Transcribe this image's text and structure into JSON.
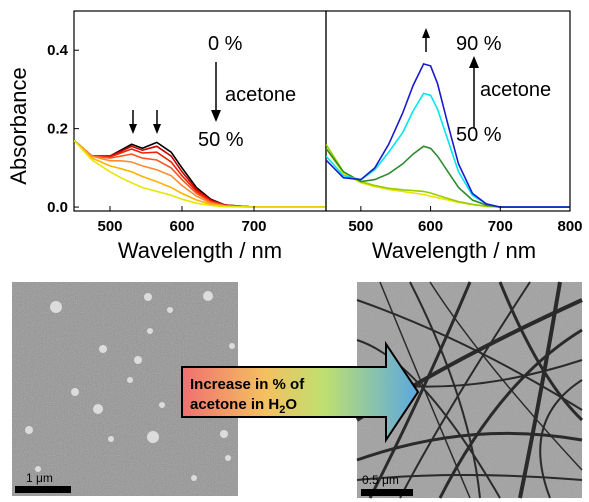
{
  "chart_data": [
    {
      "type": "line",
      "panel": "left",
      "xlabel": "Wavelength / nm",
      "ylabel": "Absorbance",
      "xlim": [
        450,
        800
      ],
      "ylim": [
        -0.01,
        0.5
      ],
      "xticks": [
        500,
        600,
        700
      ],
      "yticks": [
        0.0,
        0.2,
        0.4
      ],
      "grid": false,
      "annotations": {
        "top": "0 %",
        "label": "acetone",
        "bottom": "50 %"
      },
      "x": [
        450,
        475,
        500,
        515,
        530,
        545,
        565,
        585,
        600,
        620,
        640,
        660,
        700,
        750,
        800
      ],
      "series": [
        {
          "color": "#000000",
          "values": [
            0.17,
            0.13,
            0.13,
            0.145,
            0.16,
            0.15,
            0.165,
            0.14,
            0.1,
            0.05,
            0.02,
            0.005,
            0.0,
            0.0,
            0.0
          ]
        },
        {
          "color": "#cc0000",
          "values": [
            0.17,
            0.13,
            0.13,
            0.142,
            0.155,
            0.145,
            0.155,
            0.13,
            0.09,
            0.045,
            0.018,
            0.005,
            0.0,
            0.0,
            0.0
          ]
        },
        {
          "color": "#ee2200",
          "values": [
            0.17,
            0.13,
            0.128,
            0.138,
            0.148,
            0.138,
            0.14,
            0.115,
            0.08,
            0.04,
            0.015,
            0.004,
            0.0,
            0.0,
            0.0
          ]
        },
        {
          "color": "#ff5522",
          "values": [
            0.17,
            0.13,
            0.125,
            0.13,
            0.135,
            0.125,
            0.12,
            0.1,
            0.07,
            0.035,
            0.013,
            0.003,
            0.0,
            0.0,
            0.0
          ]
        },
        {
          "color": "#ff8c33",
          "values": [
            0.17,
            0.13,
            0.118,
            0.118,
            0.115,
            0.105,
            0.095,
            0.08,
            0.055,
            0.028,
            0.01,
            0.003,
            0.0,
            0.0,
            0.0
          ]
        },
        {
          "color": "#ffb300",
          "values": [
            0.17,
            0.125,
            0.105,
            0.098,
            0.09,
            0.078,
            0.065,
            0.05,
            0.035,
            0.018,
            0.007,
            0.002,
            0.0,
            0.0,
            0.0
          ]
        },
        {
          "color": "#e6e600",
          "values": [
            0.17,
            0.12,
            0.09,
            0.075,
            0.062,
            0.05,
            0.04,
            0.03,
            0.02,
            0.01,
            0.004,
            0.001,
            0.0,
            0.0,
            0.0
          ]
        }
      ]
    },
    {
      "type": "line",
      "panel": "right",
      "xlabel": "Wavelength / nm",
      "ylabel": "",
      "xlim": [
        450,
        800
      ],
      "ylim": [
        -0.01,
        0.5
      ],
      "xticks": [
        500,
        600,
        700,
        800
      ],
      "xtick_labels": [
        "500",
        "600",
        "700",
        "800"
      ],
      "grid": false,
      "annotations": {
        "top": "90 %",
        "label": "acetone",
        "bottom": "50 %"
      },
      "x": [
        450,
        475,
        500,
        520,
        540,
        560,
        575,
        590,
        600,
        610,
        625,
        640,
        660,
        680,
        700,
        750,
        800
      ],
      "series": [
        {
          "color": "#e6e600",
          "values": [
            0.15,
            0.085,
            0.062,
            0.052,
            0.045,
            0.04,
            0.036,
            0.032,
            0.028,
            0.024,
            0.018,
            0.012,
            0.006,
            0.002,
            0.0,
            0.0,
            0.0
          ]
        },
        {
          "color": "#99cc00",
          "values": [
            0.16,
            0.09,
            0.065,
            0.055,
            0.048,
            0.044,
            0.042,
            0.04,
            0.036,
            0.03,
            0.022,
            0.014,
            0.007,
            0.002,
            0.0,
            0.0,
            0.0
          ]
        },
        {
          "color": "#2e8b2e",
          "values": [
            0.15,
            0.09,
            0.065,
            0.07,
            0.085,
            0.11,
            0.135,
            0.155,
            0.15,
            0.13,
            0.09,
            0.05,
            0.018,
            0.005,
            0.0,
            0.0,
            0.0
          ]
        },
        {
          "color": "#00e5ee",
          "values": [
            0.13,
            0.08,
            0.07,
            0.095,
            0.14,
            0.19,
            0.245,
            0.29,
            0.285,
            0.25,
            0.17,
            0.09,
            0.03,
            0.008,
            0.0,
            0.0,
            0.0
          ]
        },
        {
          "color": "#1a1acc",
          "values": [
            0.12,
            0.075,
            0.07,
            0.1,
            0.16,
            0.24,
            0.31,
            0.365,
            0.36,
            0.315,
            0.21,
            0.11,
            0.035,
            0.008,
            0.0,
            0.0,
            0.0
          ]
        }
      ]
    }
  ],
  "micrographs": {
    "left_scale": "1 μm",
    "right_scale": "0.5 μm"
  },
  "arrow": {
    "line1": "Increase in % of",
    "line2": "acetone in H2O"
  }
}
